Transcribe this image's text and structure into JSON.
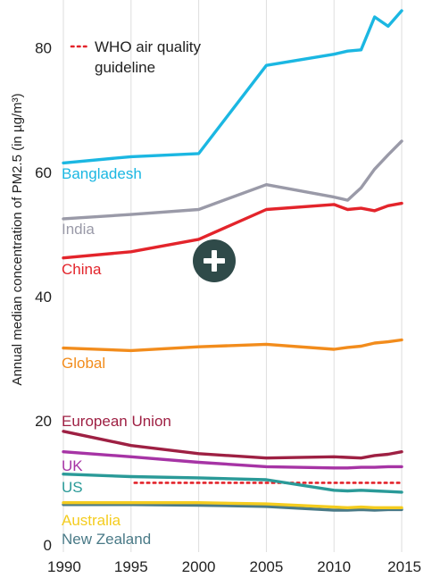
{
  "chart_data": {
    "type": "line",
    "title": "",
    "xlabel": "",
    "ylabel": "Annual median concentration of PM2.5 (in µg/m³)",
    "xlim": [
      1990,
      2015
    ],
    "ylim": [
      0,
      86
    ],
    "x_ticks": [
      1990,
      1995,
      2000,
      2005,
      2010,
      2015
    ],
    "y_ticks": [
      0,
      20,
      40,
      60,
      80
    ],
    "grid": "vertical",
    "legend": {
      "label": "WHO air quality guideline",
      "line1": "WHO air quality",
      "line2": "guideline",
      "placement": "top-left"
    },
    "series": [
      {
        "name": "Bangladesh",
        "color": "#1bb7e2",
        "x": [
          1990,
          1995,
          2000,
          2005,
          2010,
          2011,
          2012,
          2013,
          2014,
          2015
        ],
        "values": [
          61.5,
          62.5,
          63,
          77.2,
          79,
          79.5,
          79.7,
          85,
          83.5,
          86
        ]
      },
      {
        "name": "India",
        "color": "#9a9aa8",
        "x": [
          1990,
          1995,
          2000,
          2005,
          2010,
          2011,
          2012,
          2013,
          2014,
          2015
        ],
        "values": [
          52.5,
          53.2,
          54,
          58,
          56,
          55.5,
          57.5,
          60.5,
          62.8,
          65
        ]
      },
      {
        "name": "China",
        "color": "#e3242b",
        "x": [
          1990,
          1995,
          2000,
          2005,
          2010,
          2011,
          2012,
          2013,
          2014,
          2015
        ],
        "values": [
          46.2,
          47.2,
          49.2,
          54,
          54.8,
          54,
          54.2,
          53.8,
          54.6,
          55
        ]
      },
      {
        "name": "Global",
        "color": "#f28c1c",
        "x": [
          1990,
          1995,
          2000,
          2005,
          2010,
          2011,
          2012,
          2013,
          2014,
          2015
        ],
        "values": [
          31.7,
          31.3,
          31.9,
          32.3,
          31.5,
          31.8,
          32,
          32.5,
          32.7,
          33
        ]
      },
      {
        "name": "European Union",
        "color": "#9e2043",
        "x": [
          1990,
          1995,
          2000,
          2005,
          2010,
          2011,
          2012,
          2013,
          2014,
          2015
        ],
        "values": [
          18.3,
          16,
          14.7,
          14,
          14.2,
          14.1,
          14,
          14.4,
          14.6,
          15
        ]
      },
      {
        "name": "UK",
        "color": "#a634a5",
        "x": [
          1990,
          1995,
          2000,
          2005,
          2010,
          2011,
          2012,
          2013,
          2014,
          2015
        ],
        "values": [
          15,
          14.2,
          13.3,
          12.6,
          12.4,
          12.4,
          12.5,
          12.5,
          12.6,
          12.6
        ]
      },
      {
        "name": "US",
        "color": "#2a9a98",
        "x": [
          1990,
          1995,
          2000,
          2005,
          2010,
          2011,
          2012,
          2013,
          2014,
          2015
        ],
        "values": [
          11.4,
          11,
          10.8,
          10.5,
          8.8,
          8.7,
          8.8,
          8.7,
          8.6,
          8.5
        ]
      },
      {
        "name": "Australia",
        "color": "#f4cc1f",
        "x": [
          1990,
          1995,
          2000,
          2005,
          2010,
          2011,
          2012,
          2013,
          2014,
          2015
        ],
        "values": [
          6.8,
          6.8,
          6.8,
          6.6,
          6.1,
          6,
          6.1,
          6,
          6,
          6
        ]
      },
      {
        "name": "New Zealand",
        "color": "#4a7a87",
        "x": [
          1990,
          1995,
          2000,
          2005,
          2010,
          2011,
          2012,
          2013,
          2014,
          2015
        ],
        "values": [
          6.5,
          6.5,
          6.4,
          6.2,
          5.6,
          5.6,
          5.7,
          5.6,
          5.7,
          5.7
        ]
      }
    ],
    "reference_line": {
      "name": "WHO air quality guideline",
      "value": 10,
      "x": [
        1995,
        2015
      ],
      "color": "#e3242b",
      "style": "dotted"
    }
  },
  "zoom_icon": "plus-icon",
  "zoom_color": "#2f4a49"
}
